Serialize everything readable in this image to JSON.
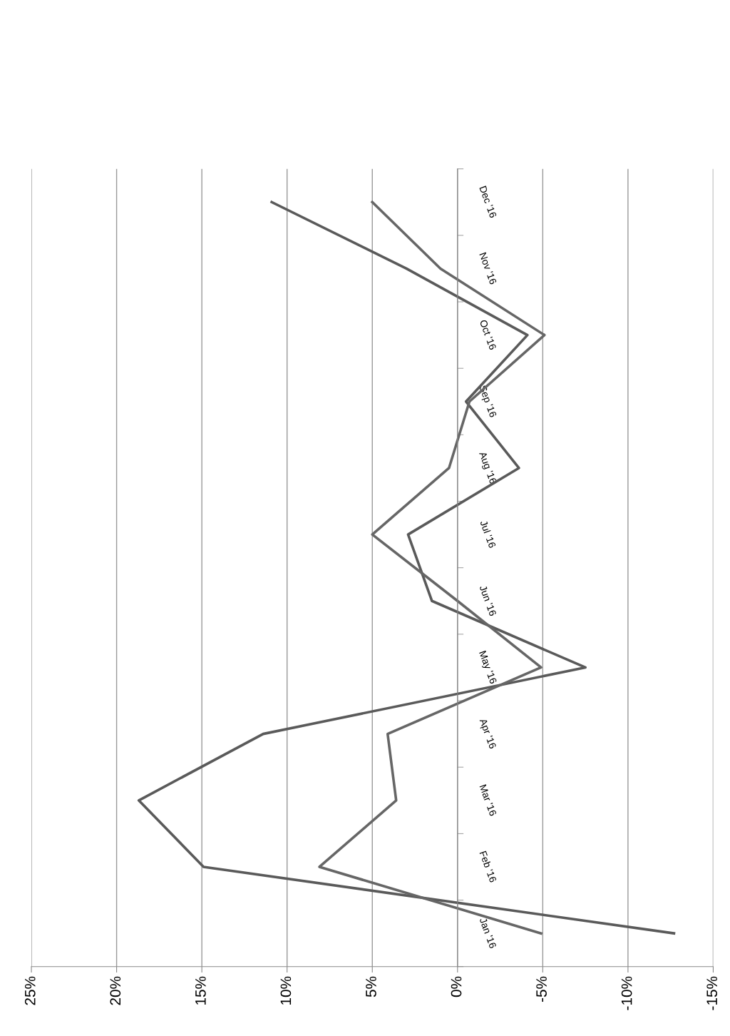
{
  "chart_data": {
    "type": "line",
    "orientation": "horizontal",
    "categories": [
      "Dec '16",
      "Nov '16",
      "Oct '16",
      "Sep '16",
      "Aug '16",
      "Jul '16",
      "Jun '16",
      "May '16",
      "Apr '16",
      "Mar '16",
      "Feb '16",
      "Jan '16"
    ],
    "series": [
      {
        "color": "#5a5a5a",
        "values": [
          10.9,
          3.0,
          -4.1,
          -0.5,
          -3.6,
          2.9,
          1.5,
          -7.5,
          11.4,
          18.7,
          14.9,
          -12.7
        ]
      },
      {
        "color": "#666666",
        "values": [
          5.0,
          1.0,
          -5.1,
          -0.7,
          0.5,
          5.0,
          0.0,
          -4.9,
          4.1,
          3.6,
          8.1,
          -4.9
        ]
      }
    ],
    "xlim": [
      25,
      -15
    ],
    "xticks": [
      {
        "value": 25,
        "label": "25%"
      },
      {
        "value": 20,
        "label": "20%"
      },
      {
        "value": 15,
        "label": "15%"
      },
      {
        "value": 10,
        "label": "10%"
      },
      {
        "value": 5,
        "label": "5%"
      },
      {
        "value": 0,
        "label": "0%"
      },
      {
        "value": -5,
        "label": "-5%"
      },
      {
        "value": -10,
        "label": "-10%"
      },
      {
        "value": -15,
        "label": "-15%"
      }
    ],
    "grid": "x",
    "line_style": "solid"
  }
}
